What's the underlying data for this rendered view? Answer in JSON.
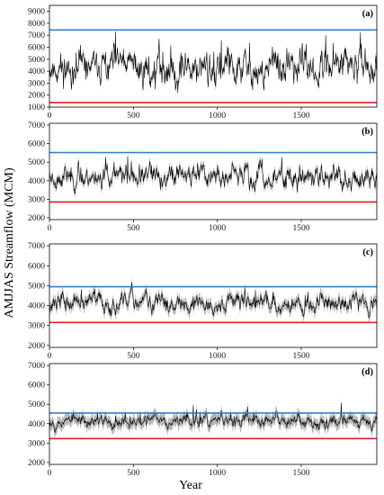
{
  "figure": {
    "ylabel": "AMJJAS Streamflow (MCM)",
    "xlabel": "Year"
  },
  "chart_data": [
    {
      "type": "line",
      "panel_label": "(a)",
      "xlim": [
        0,
        1950
      ],
      "ylim": [
        1000,
        9500
      ],
      "y_ticks": [
        1000,
        2000,
        3000,
        4000,
        5000,
        6000,
        7000,
        8000,
        9000
      ],
      "x_ticks": [
        0,
        500,
        1000,
        1500
      ],
      "hlines": [
        {
          "value": 7450,
          "color": "#2f7fc8"
        },
        {
          "value": 1380,
          "color": "#e02020"
        }
      ],
      "series": [
        {
          "color": "#000000",
          "band_color": "#a9a9a9",
          "mean": 4300,
          "spread": 1350,
          "noise_scale": 1.0,
          "band": 300,
          "seed": 11,
          "x": [
            0,
            1950
          ]
        }
      ]
    },
    {
      "type": "line",
      "panel_label": "(b)",
      "xlim": [
        0,
        1950
      ],
      "ylim": [
        1900,
        7100
      ],
      "y_ticks": [
        2000,
        3000,
        4000,
        5000,
        6000,
        7000
      ],
      "x_ticks": [
        0,
        500,
        1000,
        1500
      ],
      "hlines": [
        {
          "value": 5520,
          "color": "#2f7fc8"
        },
        {
          "value": 2850,
          "color": "#e02020"
        }
      ],
      "series": [
        {
          "color": "#000000",
          "band_color": "#a9a9a9",
          "mean": 4250,
          "spread": 750,
          "noise_scale": 0.55,
          "band": 220,
          "seed": 23,
          "x": [
            0,
            1950
          ]
        }
      ]
    },
    {
      "type": "line",
      "panel_label": "(c)",
      "xlim": [
        0,
        1950
      ],
      "ylim": [
        1900,
        7100
      ],
      "y_ticks": [
        2000,
        3000,
        4000,
        5000,
        6000,
        7000
      ],
      "x_ticks": [
        0,
        500,
        1000,
        1500
      ],
      "hlines": [
        {
          "value": 4950,
          "color": "#2f7fc8"
        },
        {
          "value": 3150,
          "color": "#e02020"
        }
      ],
      "series": [
        {
          "color": "#000000",
          "band_color": "#a9a9a9",
          "mean": 4150,
          "spread": 650,
          "noise_scale": 0.35,
          "band": 260,
          "seed": 37,
          "x": [
            0,
            1950
          ]
        }
      ]
    },
    {
      "type": "line",
      "panel_label": "(d)",
      "xlim": [
        0,
        1950
      ],
      "ylim": [
        1900,
        7100
      ],
      "y_ticks": [
        2000,
        3000,
        4000,
        5000,
        6000,
        7000
      ],
      "x_ticks": [
        0,
        500,
        1000,
        1500
      ],
      "hlines": [
        {
          "value": 4550,
          "color": "#2f7fc8"
        },
        {
          "value": 3230,
          "color": "#e02020"
        }
      ],
      "series": [
        {
          "color": "#000000",
          "band_color": "#a9a9a9",
          "mean": 4150,
          "spread": 520,
          "noise_scale": 0.2,
          "band": 300,
          "seed": 53,
          "x": [
            0,
            1950
          ]
        }
      ]
    }
  ]
}
